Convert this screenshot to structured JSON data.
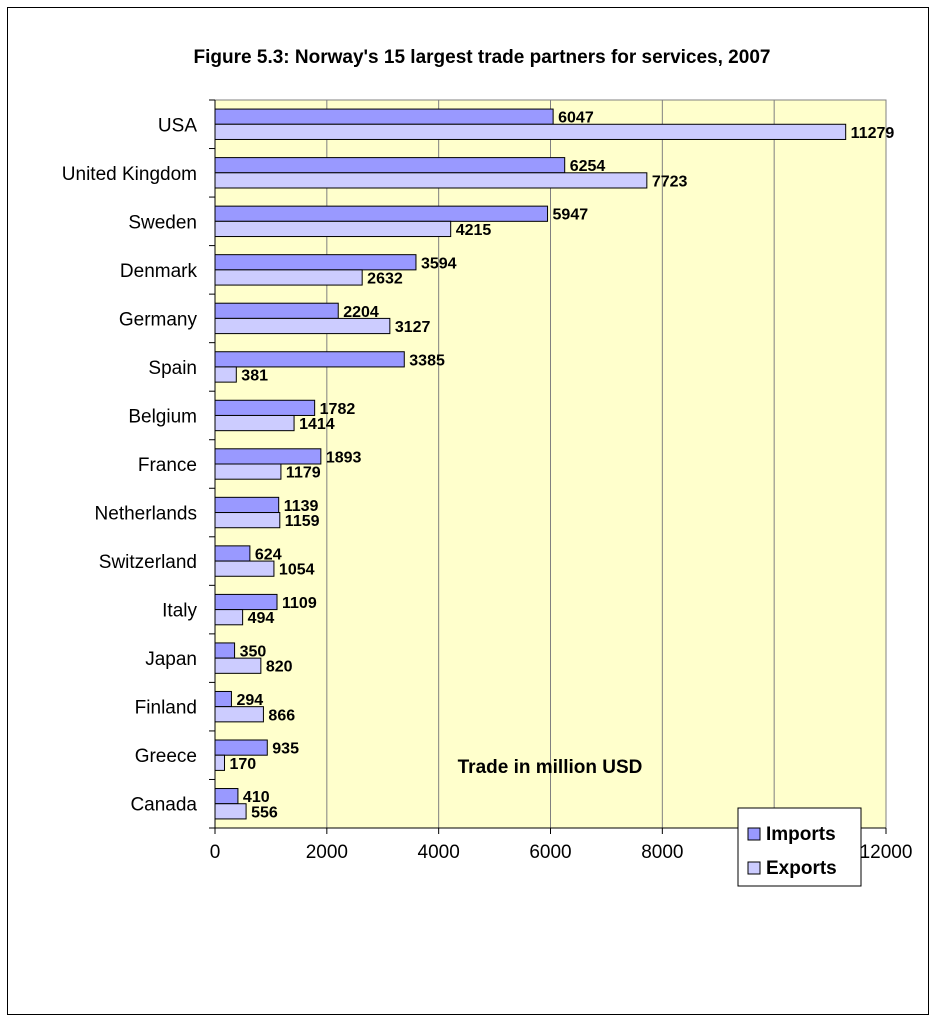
{
  "chart_data": {
    "type": "bar",
    "orientation": "horizontal",
    "title": "Figure 5.3: Norway's 15 largest trade partners for services, 2007",
    "xlabel": "Trade in million USD",
    "ylabel": "",
    "xlim": [
      0,
      12000
    ],
    "xticks": [
      0,
      2000,
      4000,
      6000,
      8000,
      10000,
      12000
    ],
    "grid": "vertical",
    "legend_position": "bottom-right",
    "plot_background": "#ffffcc",
    "categories": [
      "USA",
      "United Kingdom",
      "Sweden",
      "Denmark",
      "Germany",
      "Spain",
      "Belgium",
      "France",
      "Netherlands",
      "Switzerland",
      "Italy",
      "Japan",
      "Finland",
      "Greece",
      "Canada"
    ],
    "series": [
      {
        "name": "Imports",
        "color": "#9999ff",
        "values": [
          6047,
          6254,
          5947,
          3594,
          2204,
          3385,
          1782,
          1893,
          1139,
          624,
          1109,
          350,
          294,
          935,
          410
        ]
      },
      {
        "name": "Exports",
        "color": "#ccccff",
        "values": [
          11279,
          7723,
          4215,
          2632,
          3127,
          381,
          1414,
          1179,
          1159,
          1054,
          494,
          820,
          866,
          170,
          556
        ]
      }
    ]
  }
}
